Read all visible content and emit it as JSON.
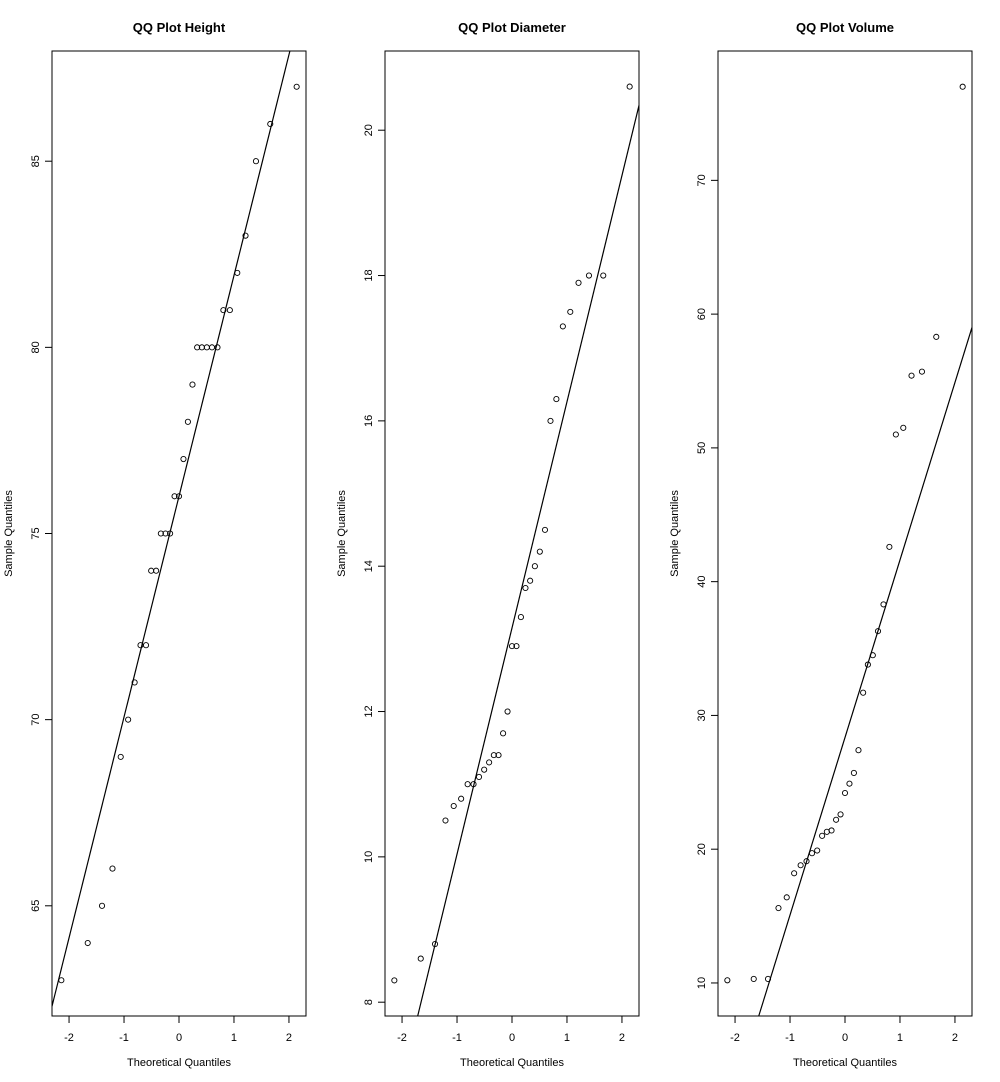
{
  "theoretical_quantiles": [
    -2.14,
    -1.66,
    -1.4,
    -1.21,
    -1.06,
    -0.925,
    -0.807,
    -0.7,
    -0.6,
    -0.506,
    -0.416,
    -0.33,
    -0.245,
    -0.162,
    -0.081,
    0,
    0.081,
    0.162,
    0.245,
    0.33,
    0.416,
    0.506,
    0.6,
    0.7,
    0.807,
    0.925,
    1.06,
    1.21,
    1.4,
    1.66,
    2.14
  ],
  "chart_data": [
    {
      "type": "scatter",
      "title": "QQ Plot Height",
      "xlabel": "Theoretical Quantiles",
      "ylabel": "Sample Quantiles",
      "xlim": [
        -2.31,
        2.31
      ],
      "ylim": [
        62.04,
        87.96
      ],
      "xticks": [
        -2,
        -1,
        0,
        1,
        2
      ],
      "yticks": [
        65,
        70,
        75,
        80,
        85
      ],
      "sample": [
        63,
        64,
        65,
        66,
        69,
        70,
        71,
        72,
        72,
        74,
        74,
        75,
        75,
        75,
        76,
        76,
        77,
        78,
        79,
        80,
        80,
        80,
        80,
        80,
        81,
        81,
        82,
        83,
        85,
        86,
        87
      ],
      "reference_line": {
        "intercept": 76,
        "slope": 5.93
      }
    },
    {
      "type": "scatter",
      "title": "QQ Plot Diameter",
      "xlabel": "Theoretical Quantiles",
      "ylabel": "Sample Quantiles",
      "xlim": [
        -2.31,
        2.31
      ],
      "ylim": [
        7.81,
        21.09
      ],
      "xticks": [
        -2,
        -1,
        0,
        1,
        2
      ],
      "yticks": [
        8,
        10,
        12,
        14,
        16,
        18,
        20
      ],
      "sample": [
        8.3,
        8.6,
        8.8,
        10.5,
        10.7,
        10.8,
        11.0,
        11.0,
        11.1,
        11.2,
        11.3,
        11.4,
        11.4,
        11.7,
        12.0,
        12.9,
        12.9,
        13.3,
        13.7,
        13.8,
        14.0,
        14.2,
        14.5,
        16.0,
        16.3,
        17.3,
        17.5,
        17.9,
        18.0,
        18.0,
        20.6
      ],
      "reference_line": {
        "intercept": 13.15,
        "slope": 3.113
      }
    },
    {
      "type": "scatter",
      "title": "QQ Plot Volume",
      "xlabel": "Theoretical Quantiles",
      "ylabel": "Sample Quantiles",
      "xlim": [
        -2.31,
        2.31
      ],
      "ylim": [
        7.53,
        79.67
      ],
      "xticks": [
        -2,
        -1,
        0,
        1,
        2
      ],
      "yticks": [
        10,
        20,
        30,
        40,
        50,
        60,
        70
      ],
      "sample": [
        10.2,
        10.3,
        10.3,
        15.6,
        16.4,
        18.2,
        18.8,
        19.1,
        19.7,
        19.9,
        21.0,
        21.3,
        21.4,
        22.2,
        22.6,
        24.2,
        24.9,
        25.7,
        27.4,
        31.7,
        33.8,
        34.5,
        36.3,
        38.3,
        42.6,
        51.0,
        51.5,
        55.4,
        55.7,
        58.3,
        77.0
      ],
      "reference_line": {
        "intercept": 28.35,
        "slope": 13.27
      }
    }
  ]
}
